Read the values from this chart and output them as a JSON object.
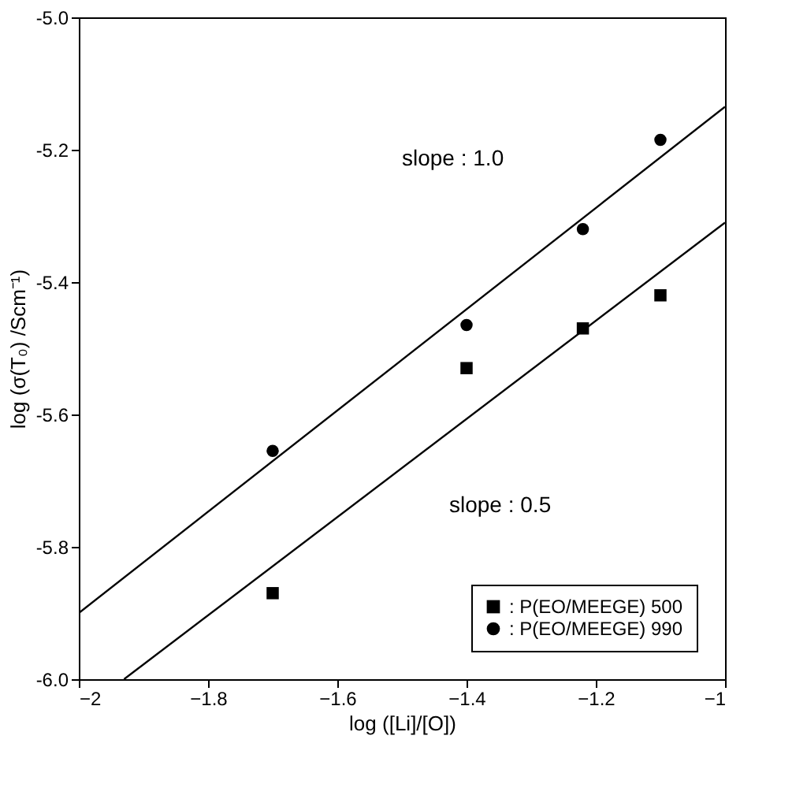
{
  "chart_data": {
    "type": "scatter",
    "xlabel": "log ([Li]/[O])",
    "ylabel": "log (σ(T₀) /Scm⁻¹)",
    "xlim": [
      -2,
      -1
    ],
    "xticks": [
      -2,
      -1.8,
      -1.6,
      -1.4,
      -1.2,
      -1
    ],
    "ylim": [
      -6,
      -5
    ],
    "yticks": [
      {
        "value": -6,
        "label": "-6.0"
      },
      {
        "value": -5.8,
        "label": "-5.8"
      },
      {
        "value": -5.6,
        "label": "-5.6"
      },
      {
        "value": -5.4,
        "label": "-5.4"
      },
      {
        "value": -5.2,
        "label": "-5.2"
      },
      {
        "value": -5,
        "label": "-5.0"
      }
    ],
    "grid": false,
    "legend": "bottom right",
    "series": [
      {
        "name": ": P(EO/MEEGE) 500",
        "color": "#000000",
        "marker": "square",
        "x": [
          -1.7,
          -1.4,
          -1.22,
          -1.1
        ],
        "values": [
          -5.87,
          -5.53,
          -5.47,
          -5.42
        ]
      },
      {
        "name": ": P(EO/MEEGE) 990",
        "color": "#000000",
        "marker": "circle",
        "x": [
          -1.7,
          -1.4,
          -1.22,
          -1.1
        ],
        "values": [
          -5.655,
          -5.465,
          -5.32,
          -5.185
        ]
      },
      {
        "type": "line",
        "color": "#000000",
        "x": [
          -2,
          -1
        ],
        "values": [
          -5.9,
          -5.135
        ]
      },
      {
        "type": "line",
        "color": "#000000",
        "x": [
          -1.93,
          -1
        ],
        "values": [
          -6,
          -5.31
        ]
      }
    ],
    "annotations": [
      "slope : 1.0",
      "slope : 0.5"
    ]
  }
}
